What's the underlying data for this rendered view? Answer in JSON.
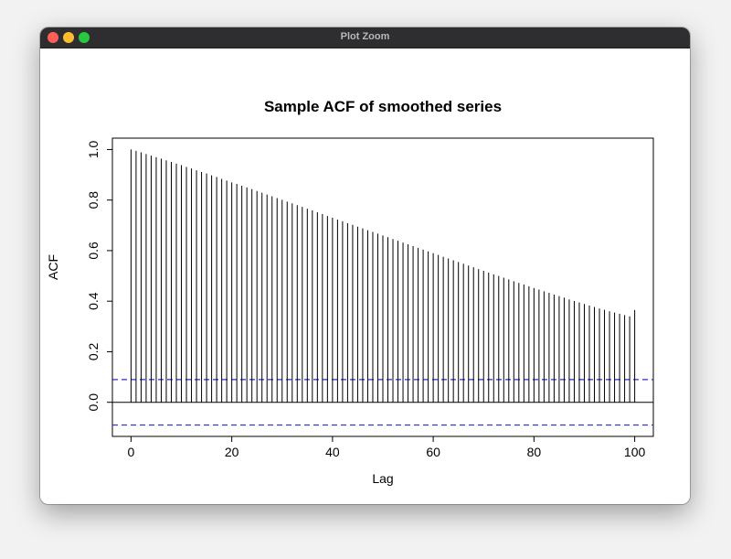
{
  "window": {
    "title": "Plot Zoom"
  },
  "chart_data": {
    "type": "bar",
    "title": "Sample ACF of smoothed series",
    "xlabel": "Lag",
    "ylabel": "ACF",
    "xlim": [
      -3.7,
      103.7
    ],
    "ylim": [
      -0.135,
      1.045
    ],
    "x_ticks": [
      0,
      20,
      40,
      60,
      80,
      100
    ],
    "x_tick_labels": [
      "0",
      "20",
      "40",
      "60",
      "80",
      "100"
    ],
    "y_ticks": [
      0.0,
      0.2,
      0.4,
      0.6,
      0.8,
      1.0
    ],
    "y_tick_labels": [
      "0.0",
      "0.2",
      "0.4",
      "0.6",
      "0.8",
      "1.0"
    ],
    "lags": [
      0,
      1,
      2,
      3,
      4,
      5,
      6,
      7,
      8,
      9,
      10,
      11,
      12,
      13,
      14,
      15,
      16,
      17,
      18,
      19,
      20,
      21,
      22,
      23,
      24,
      25,
      26,
      27,
      28,
      29,
      30,
      31,
      32,
      33,
      34,
      35,
      36,
      37,
      38,
      39,
      40,
      41,
      42,
      43,
      44,
      45,
      46,
      47,
      48,
      49,
      50,
      51,
      52,
      53,
      54,
      55,
      56,
      57,
      58,
      59,
      60,
      61,
      62,
      63,
      64,
      65,
      66,
      67,
      68,
      69,
      70,
      71,
      72,
      73,
      74,
      75,
      76,
      77,
      78,
      79,
      80,
      81,
      82,
      83,
      84,
      85,
      86,
      87,
      88,
      89,
      90,
      91,
      92,
      93,
      94,
      95,
      96,
      97,
      98,
      99,
      100
    ],
    "values": [
      1.0,
      0.995,
      0.989,
      0.982,
      0.976,
      0.97,
      0.964,
      0.957,
      0.951,
      0.944,
      0.938,
      0.931,
      0.925,
      0.918,
      0.911,
      0.905,
      0.898,
      0.891,
      0.884,
      0.877,
      0.87,
      0.864,
      0.857,
      0.85,
      0.843,
      0.836,
      0.829,
      0.822,
      0.815,
      0.808,
      0.801,
      0.794,
      0.787,
      0.78,
      0.773,
      0.766,
      0.759,
      0.752,
      0.745,
      0.737,
      0.73,
      0.723,
      0.716,
      0.709,
      0.702,
      0.695,
      0.688,
      0.681,
      0.674,
      0.667,
      0.66,
      0.653,
      0.646,
      0.639,
      0.632,
      0.625,
      0.618,
      0.611,
      0.604,
      0.597,
      0.59,
      0.583,
      0.576,
      0.569,
      0.562,
      0.555,
      0.548,
      0.541,
      0.534,
      0.527,
      0.52,
      0.513,
      0.506,
      0.5,
      0.493,
      0.486,
      0.479,
      0.472,
      0.466,
      0.459,
      0.452,
      0.446,
      0.439,
      0.433,
      0.426,
      0.42,
      0.414,
      0.407,
      0.401,
      0.395,
      0.389,
      0.383,
      0.377,
      0.371,
      0.366,
      0.36,
      0.355,
      0.35,
      0.345,
      0.34,
      0.365
    ],
    "confidence_bound": 0.09,
    "zero_line": true,
    "grid": false,
    "colors": {
      "bars": "#000000",
      "confidence": "#2b2bd6",
      "box": "#000000"
    }
  }
}
